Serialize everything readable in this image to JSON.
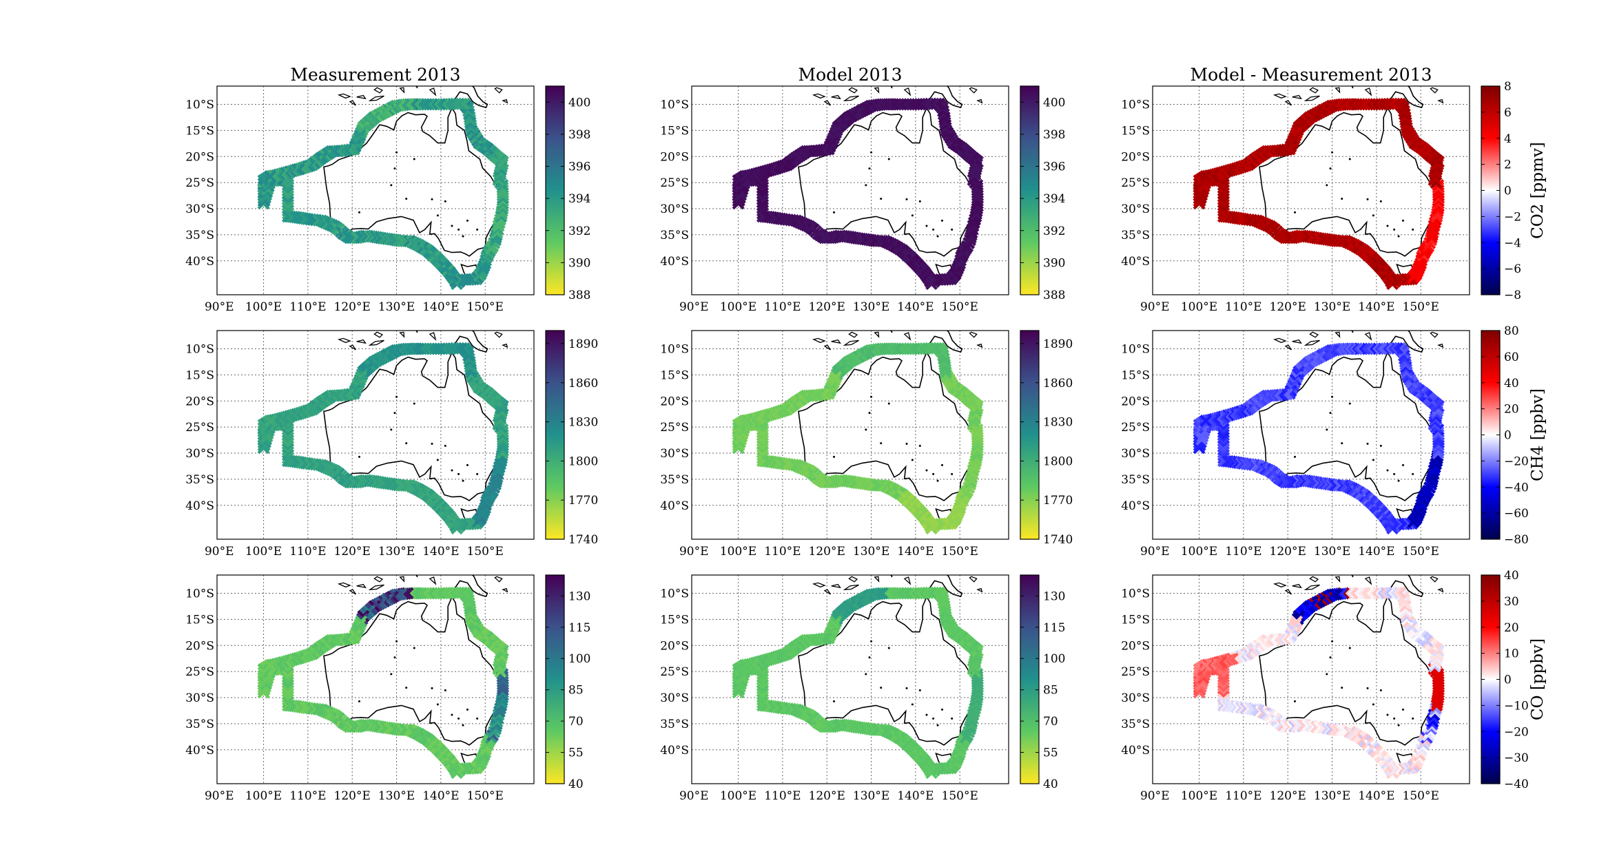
{
  "titles": [
    "Measurement 2013",
    "Model 2013",
    "Model - Measurement 2013"
  ],
  "lat_ticks": [
    "10°S",
    "15°S",
    "20°S",
    "25°S",
    "30°S",
    "35°S",
    "40°S"
  ],
  "lon_ticks": [
    "90°E",
    "100°E",
    "110°E",
    "120°E",
    "130°E",
    "140°E",
    "150°E"
  ],
  "chart_data": [
    {
      "type": "map-track",
      "gas": "CO2",
      "title_row": true,
      "colorbar_abs": {
        "ticks": [
          388,
          390,
          392,
          394,
          396,
          398,
          400
        ],
        "range": [
          388,
          401
        ],
        "colormap": "viridis_r"
      },
      "colorbar_diff": {
        "ticks": [
          -8,
          -6,
          -4,
          -2,
          0,
          2,
          4,
          6,
          8
        ],
        "range": [
          -8,
          8
        ],
        "colormap": "seismic",
        "label": "CO2 [ppmv]"
      },
      "measurement_typical": 394,
      "model_typical": 400.5,
      "difference_typical": 6.5
    },
    {
      "type": "map-track",
      "gas": "CH4",
      "colorbar_abs": {
        "ticks": [
          1740,
          1770,
          1800,
          1830,
          1860,
          1890
        ],
        "range": [
          1740,
          1900
        ],
        "colormap": "viridis_r"
      },
      "colorbar_diff": {
        "ticks": [
          -80,
          -60,
          -40,
          -20,
          0,
          20,
          40,
          60,
          80
        ],
        "range": [
          -80,
          80
        ],
        "colormap": "seismic",
        "label": "CH4 [ppbv]"
      },
      "measurement_typical": 1808,
      "model_typical": 1775,
      "difference_typical": -30
    },
    {
      "type": "map-track",
      "gas": "CO",
      "colorbar_abs": {
        "ticks": [
          40,
          55,
          70,
          85,
          100,
          115,
          130
        ],
        "range": [
          40,
          140
        ],
        "colormap": "viridis_r"
      },
      "colorbar_diff": {
        "ticks": [
          -40,
          -30,
          -20,
          -10,
          0,
          10,
          20,
          30,
          40
        ],
        "range": [
          -40,
          40
        ],
        "colormap": "seismic",
        "label": "CO [ppbv]"
      },
      "measurement_typical": 65,
      "model_typical": 66,
      "difference_typical": 0
    }
  ],
  "colors": {
    "frame": "#000000",
    "grid": "#555555",
    "coast": "#000000"
  }
}
